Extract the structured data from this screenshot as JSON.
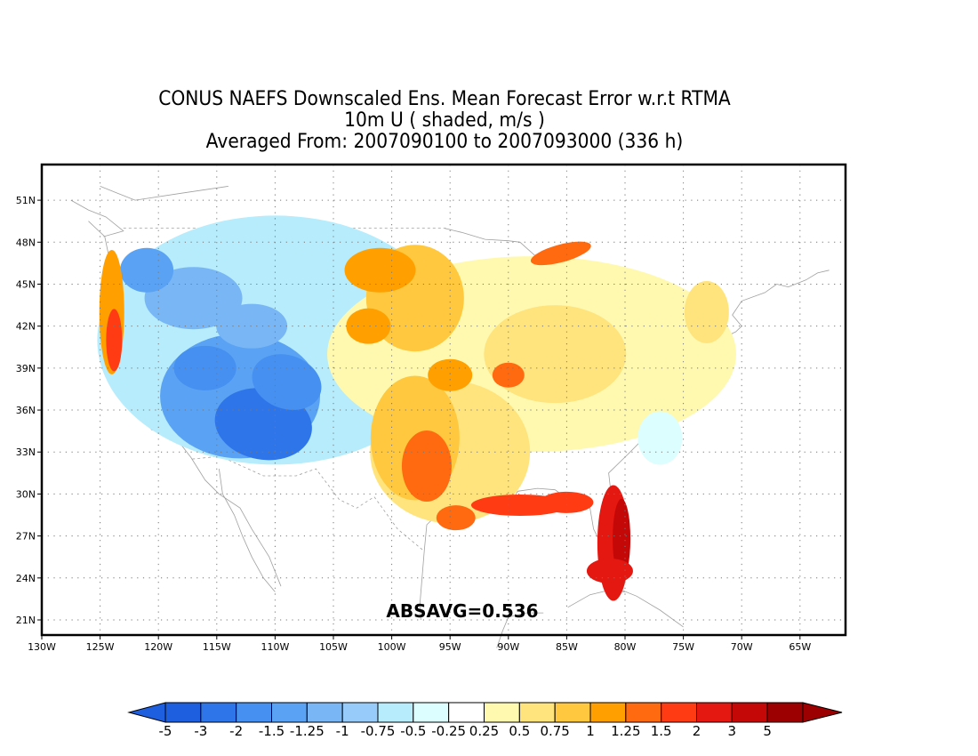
{
  "title": {
    "line1": "CONUS NAEFS Downscaled Ens. Mean Forecast Error w.r.t RTMA",
    "line2": "10m U ( shaded, m/s )",
    "line3": "Averaged From: 2007090100 to 2007093000 (336 h)"
  },
  "annotation": "ABSAVG=0.536",
  "axes": {
    "lon_ticks": [
      "130W",
      "125W",
      "120W",
      "115W",
      "110W",
      "105W",
      "100W",
      "95W",
      "90W",
      "85W",
      "80W",
      "75W",
      "70W",
      "65W"
    ],
    "lon_values": [
      -130,
      -125,
      -120,
      -115,
      -110,
      -105,
      -100,
      -95,
      -90,
      -85,
      -80,
      -75,
      -70,
      -65
    ],
    "lat_ticks": [
      "21N",
      "24N",
      "27N",
      "30N",
      "33N",
      "36N",
      "39N",
      "42N",
      "45N",
      "48N",
      "51N"
    ],
    "lat_values": [
      21,
      24,
      27,
      30,
      33,
      36,
      39,
      42,
      45,
      48,
      51
    ],
    "lon_range": [
      -130,
      -62
    ],
    "lat_range": [
      20,
      52
    ],
    "grid": true
  },
  "colorbar": {
    "labels": [
      "-5",
      "-3",
      "-2",
      "-1.5",
      "-1.25",
      "-1",
      "-0.75",
      "-0.5",
      "-0.25",
      "0.25",
      "0.5",
      "0.75",
      "1",
      "1.25",
      "1.5",
      "2",
      "3",
      "5"
    ],
    "colors": [
      "#1e5fe0",
      "#2f75ea",
      "#4590f0",
      "#5aa2f3",
      "#78b6f6",
      "#96cbfa",
      "#b6ecfc",
      "#ddfefe",
      "#ffffff",
      "#fff9b0",
      "#ffe47e",
      "#ffc83e",
      "#ffa000",
      "#ff6a10",
      "#ff3b14",
      "#e41810",
      "#c40808",
      "#9c0000"
    ]
  },
  "colors": {
    "frame": "#000000",
    "grid": "#777777",
    "coast": "#9a9a9a"
  }
}
